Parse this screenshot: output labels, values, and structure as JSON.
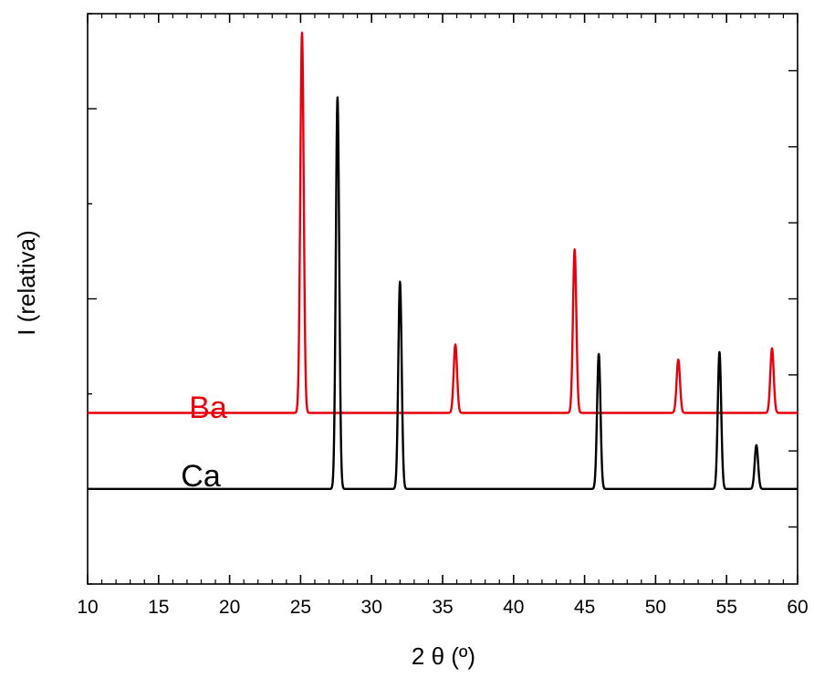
{
  "chart_data": {
    "type": "line",
    "xlabel": "2 θ (º)",
    "ylabel": "I (relativa)",
    "xlim": [
      10,
      60
    ],
    "ylim": [
      -0.5,
      2.5
    ],
    "x_ticks": [
      10,
      15,
      20,
      25,
      30,
      35,
      40,
      45,
      50,
      55,
      60
    ],
    "y_ticks_labeled": false,
    "grid": false,
    "legend": "inline text labels",
    "peak_width_deg": 0.12,
    "series": [
      {
        "name": "Ba",
        "color": "#e8000b",
        "baseline": 0.4,
        "peaks": [
          {
            "x": 25.1,
            "y": 2.4
          },
          {
            "x": 35.9,
            "y": 0.76
          },
          {
            "x": 44.3,
            "y": 1.26
          },
          {
            "x": 51.6,
            "y": 0.68
          },
          {
            "x": 58.2,
            "y": 0.74
          }
        ]
      },
      {
        "name": "Ca",
        "color": "#000000",
        "baseline": 0.0,
        "peaks": [
          {
            "x": 27.6,
            "y": 2.06
          },
          {
            "x": 32.0,
            "y": 1.09
          },
          {
            "x": 46.0,
            "y": 0.71
          },
          {
            "x": 54.5,
            "y": 0.72
          },
          {
            "x": 57.1,
            "y": 0.23
          }
        ]
      }
    ]
  }
}
